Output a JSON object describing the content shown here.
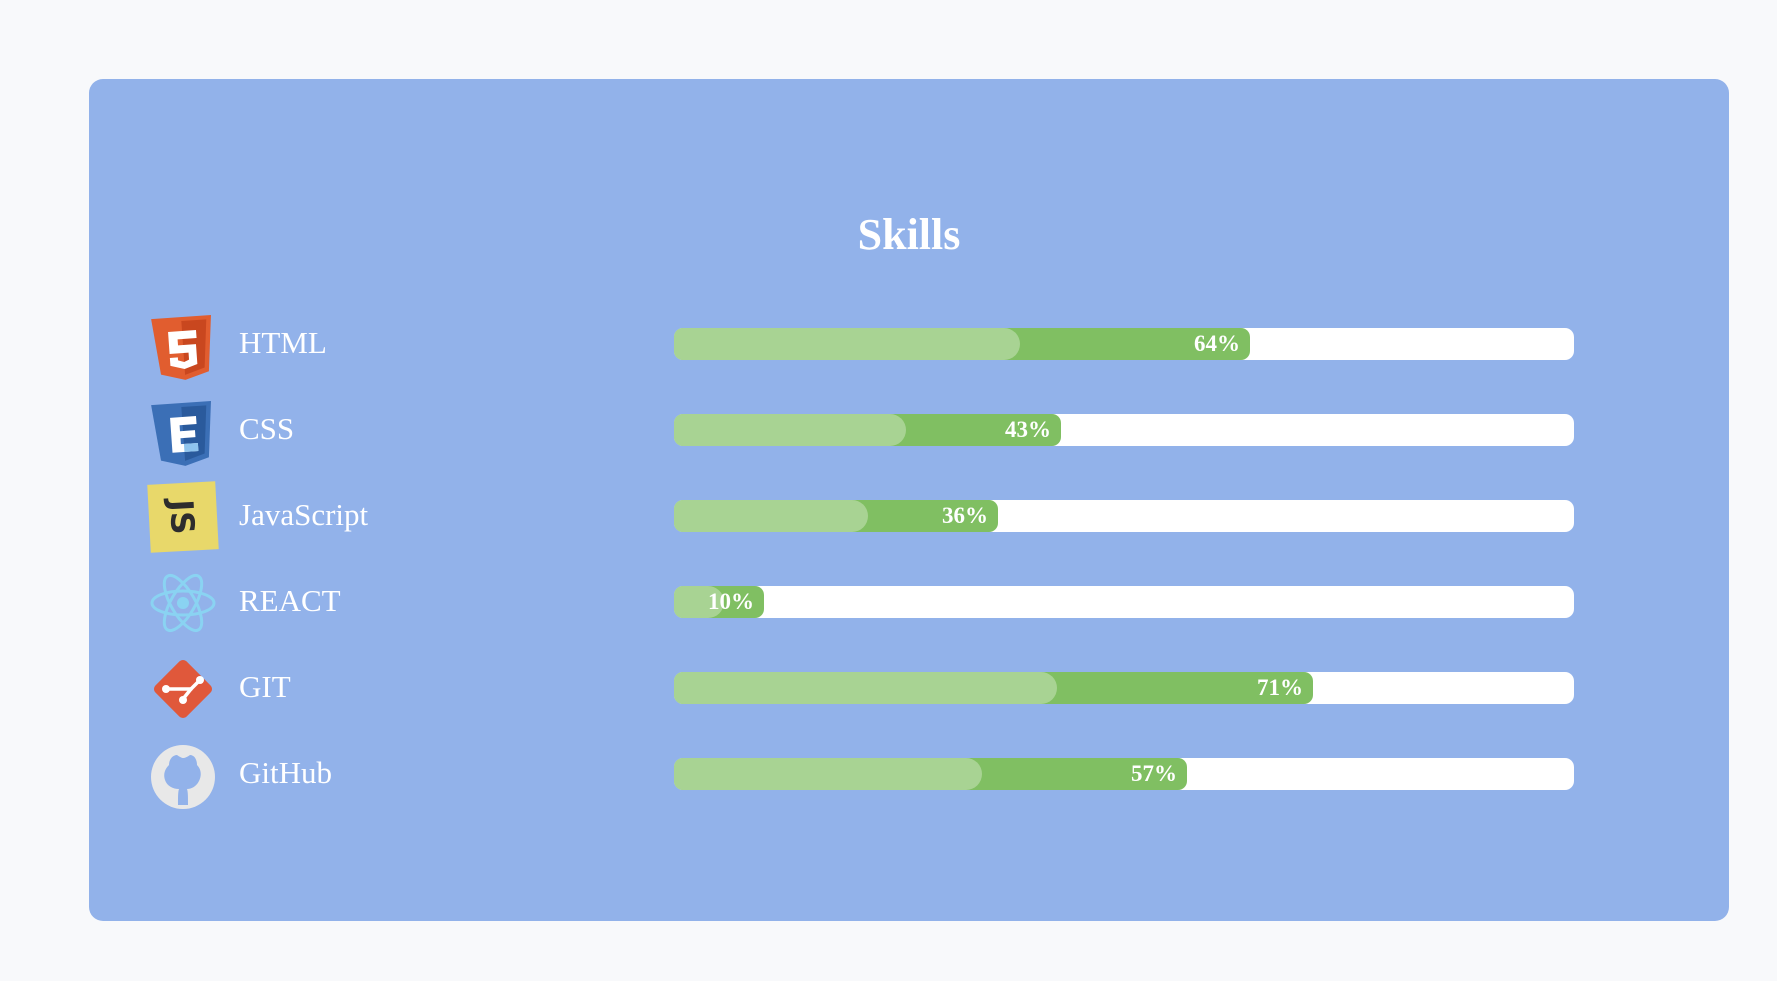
{
  "title": "Skills",
  "skills": [
    {
      "name": "HTML",
      "percent": 64,
      "percent_label": "64%",
      "icon": "html5-icon"
    },
    {
      "name": "CSS",
      "percent": 43,
      "percent_label": "43%",
      "icon": "css3-icon"
    },
    {
      "name": "JavaScript",
      "percent": 36,
      "percent_label": "36%",
      "icon": "javascript-icon"
    },
    {
      "name": "REACT",
      "percent": 10,
      "percent_label": "10%",
      "icon": "react-icon"
    },
    {
      "name": "GIT",
      "percent": 71,
      "percent_label": "71%",
      "icon": "git-icon"
    },
    {
      "name": "GitHub",
      "percent": 57,
      "percent_label": "57%",
      "icon": "github-icon"
    }
  ],
  "colors": {
    "page_background": "#f8f9fb",
    "card_background": "#92b2ea",
    "bar_track": "#ffffff",
    "bar_fill": "#80bf62",
    "bar_fill_light": "#a8d393",
    "text": "#ffffff"
  }
}
